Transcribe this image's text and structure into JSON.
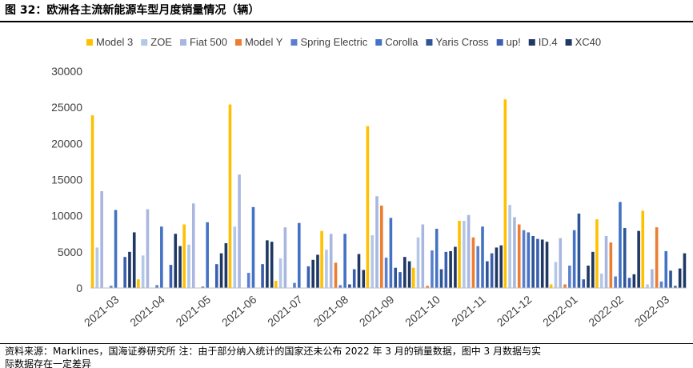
{
  "header": {
    "title": "图 32：欧洲各主流新能源车型月度销量情况（辆）"
  },
  "footer": {
    "source_line1": "资料来源：Marklines，国海证券研究所    注：由于部分纳入统计的国家还未公布 2022 年 3 月的销量数据，图中 3 月数据与实",
    "source_line2": "际数据存在一定差异"
  },
  "chart_data": {
    "type": "bar",
    "categories": [
      "2021-03",
      "2021-04",
      "2021-05",
      "2021-06",
      "2021-07",
      "2021-08",
      "2021-09",
      "2021-10",
      "2021-11",
      "2021-12",
      "2022-01",
      "2022-02",
      "2022-03"
    ],
    "ylim": [
      0,
      30000
    ],
    "yticks": [
      0,
      5000,
      10000,
      15000,
      20000,
      25000,
      30000
    ],
    "grid": false,
    "legend_position": "top",
    "series": [
      {
        "name": "Model 3",
        "color": "#FFC000",
        "values": [
          23900,
          1200,
          8800,
          25400,
          1000,
          7900,
          22400,
          2800,
          9300,
          26100,
          500,
          9500,
          10700
        ]
      },
      {
        "name": "ZOE",
        "color": "#B4C7E7",
        "values": [
          5600,
          4500,
          6000,
          8500,
          4100,
          5300,
          7300,
          7000,
          9300,
          11500,
          3600,
          2000,
          500
        ]
      },
      {
        "name": "Fiat 500",
        "color": "#A9B7E0",
        "values": [
          13400,
          10900,
          11700,
          15700,
          8400,
          7500,
          12700,
          8800,
          10100,
          9800,
          6900,
          7200,
          2600
        ]
      },
      {
        "name": "Model Y",
        "color": "#ED7D31",
        "values": [
          0,
          0,
          0,
          0,
          0,
          3500,
          11400,
          300,
          7000,
          8800,
          500,
          6300,
          8400
        ]
      },
      {
        "name": "Spring Electric",
        "color": "#5B7FCF",
        "values": [
          300,
          400,
          200,
          2100,
          700,
          400,
          4200,
          5200,
          5800,
          8000,
          3100,
          1600,
          900
        ]
      },
      {
        "name": "Corolla",
        "color": "#4472C4",
        "values": [
          10800,
          8500,
          9100,
          11200,
          9000,
          7500,
          9700,
          8200,
          8500,
          7700,
          8000,
          11900,
          5100
        ]
      },
      {
        "name": "Yaris Cross",
        "color": "#2F5597",
        "values": [
          0,
          0,
          0,
          0,
          0,
          500,
          2800,
          2600,
          3700,
          7200,
          10300,
          8300,
          2400
        ]
      },
      {
        "name": "up!",
        "color": "#3A5FB0",
        "values": [
          4300,
          3200,
          3300,
          3300,
          3000,
          2600,
          2200,
          5000,
          4800,
          6800,
          1200,
          1400,
          300
        ]
      },
      {
        "name": "ID.4",
        "color": "#203864",
        "values": [
          5000,
          7500,
          4800,
          6600,
          3900,
          4700,
          4300,
          5100,
          5600,
          6700,
          3100,
          1900,
          2700
        ]
      },
      {
        "name": "XC40",
        "color": "#1F3864",
        "values": [
          7700,
          5800,
          6200,
          6400,
          4600,
          2500,
          3700,
          5700,
          5900,
          6400,
          5000,
          7900,
          4800
        ]
      }
    ]
  }
}
